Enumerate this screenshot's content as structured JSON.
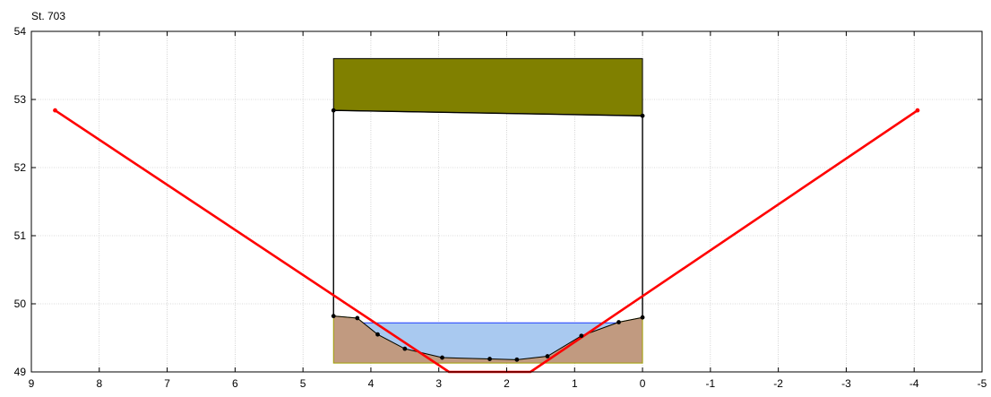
{
  "chart_data": {
    "type": "line",
    "title": "St. 703",
    "xlabel": "",
    "ylabel": "",
    "xlim": [
      9,
      -5
    ],
    "ylim": [
      49,
      54
    ],
    "x_ticks": [
      9,
      8,
      7,
      6,
      5,
      4,
      3,
      2,
      1,
      0,
      -1,
      -2,
      -3,
      -4,
      -5
    ],
    "y_ticks": [
      49,
      50,
      51,
      52,
      53,
      54
    ],
    "grid": true,
    "colors": {
      "deck": "#808000",
      "culvert": "#000000",
      "water": "#a9c9f0",
      "water_line": "#1f3cff",
      "ground": "#c19a80",
      "ground_edge": "#a0a000",
      "cutoff": "#ff0000"
    },
    "series": [
      {
        "role": "deck",
        "x": [
          4.55,
          0,
          0,
          4.55
        ],
        "y": [
          53.6,
          53.6,
          52.76,
          52.84
        ]
      },
      {
        "role": "culvert_opening",
        "x": [
          4.55,
          4.55,
          0,
          0
        ],
        "y": [
          49.82,
          52.84,
          52.76,
          49.8
        ]
      },
      {
        "role": "water_surface",
        "level": 49.72
      },
      {
        "role": "ground_fill",
        "bottom": 49.13
      },
      {
        "role": "riverbed",
        "x": [
          4.55,
          4.2,
          3.9,
          3.5,
          2.95,
          2.25,
          1.85,
          1.4,
          0.9,
          0.35,
          0
        ],
        "y": [
          49.82,
          49.79,
          49.55,
          49.34,
          49.21,
          49.19,
          49.18,
          49.23,
          49.53,
          49.73,
          49.8
        ]
      },
      {
        "role": "cutoff_line",
        "x": [
          8.65,
          2.85,
          1.65,
          -4.05
        ],
        "y": [
          52.84,
          49.0,
          49.0,
          52.84
        ]
      }
    ]
  }
}
